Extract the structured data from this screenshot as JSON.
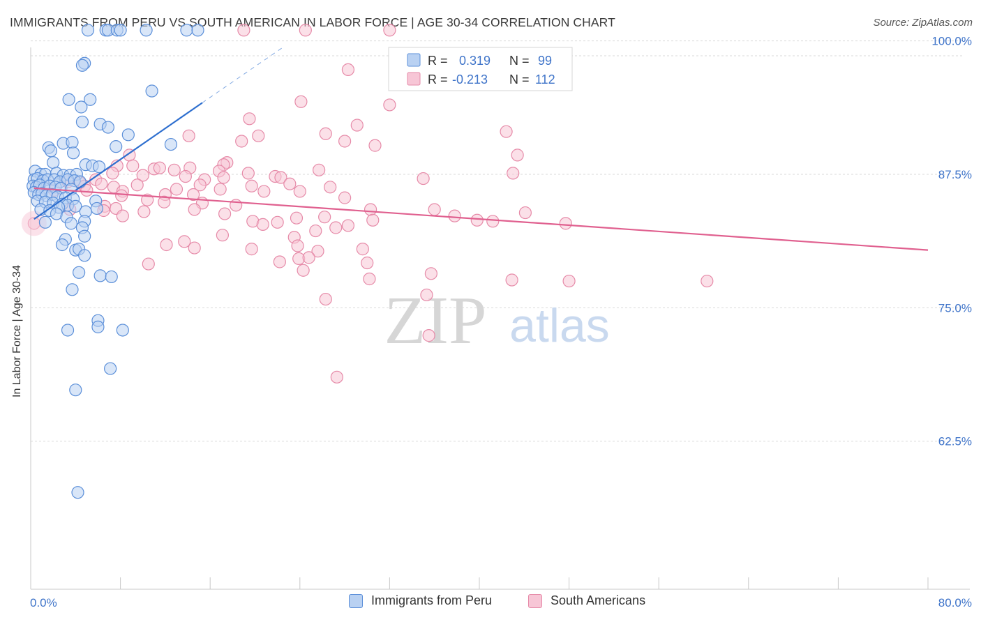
{
  "title": "IMMIGRANTS FROM PERU VS SOUTH AMERICAN IN LABOR FORCE | AGE 30-34 CORRELATION CHART",
  "source": "Source: ZipAtlas.com",
  "watermark": {
    "zip": "ZIP",
    "atlas": "atlas"
  },
  "colors": {
    "peru_fill": "#b9d1f2",
    "peru_stroke": "#5b8fd9",
    "peru_line": "#2e6fcf",
    "sa_fill": "#f7c6d6",
    "sa_stroke": "#e68aa8",
    "sa_line": "#e0608f",
    "tick_label": "#3f74c9",
    "grid": "#d9d9d9"
  },
  "stats_legend": [
    {
      "r_label": "R =",
      "r_value": "0.319",
      "n_label": "N =",
      "n_value": "99"
    },
    {
      "r_label": "R =",
      "r_value": "-0.213",
      "n_label": "N =",
      "n_value": "112"
    }
  ],
  "bottom_legend": [
    "Immigrants from Peru",
    "South Americans"
  ],
  "chart_data": {
    "type": "scatter",
    "title": "IMMIGRANTS FROM PERU VS SOUTH AMERICAN IN LABOR FORCE | AGE 30-34 CORRELATION CHART",
    "xlabel": "",
    "ylabel": "In Labor Force | Age 30-34",
    "xlim": [
      0,
      80
    ],
    "ylim": [
      51,
      101
    ],
    "x_tick_labels": [
      "0.0%",
      "80.0%"
    ],
    "y_ticks": [
      62.5,
      75.0,
      87.5,
      100.0
    ],
    "y_tick_labels": [
      "62.5%",
      "75.0%",
      "87.5%",
      "100.0%"
    ],
    "grid": true,
    "legend_position": "top-center",
    "series": [
      {
        "name": "Immigrants from Peru",
        "r": 0.319,
        "n": 99,
        "trend": {
          "x": [
            0.3,
            15.3
          ],
          "y": [
            83.3,
            94.2
          ],
          "dashed_to": [
            22.5,
            99.4
          ]
        },
        "points": [
          [
            5.1,
            101
          ],
          [
            6.7,
            101
          ],
          [
            6.9,
            101
          ],
          [
            7.7,
            101
          ],
          [
            8.0,
            101
          ],
          [
            10.3,
            101
          ],
          [
            13.9,
            101
          ],
          [
            14.9,
            101
          ],
          [
            4.8,
            97.9
          ],
          [
            4.6,
            97.7
          ],
          [
            10.8,
            95.3
          ],
          [
            5.3,
            94.5
          ],
          [
            3.4,
            94.5
          ],
          [
            4.5,
            93.8
          ],
          [
            6.2,
            92.2
          ],
          [
            6.9,
            91.9
          ],
          [
            4.6,
            92.4
          ],
          [
            8.7,
            91.2
          ],
          [
            2.9,
            90.4
          ],
          [
            3.7,
            90.5
          ],
          [
            7.6,
            90.1
          ],
          [
            12.5,
            90.3
          ],
          [
            1.6,
            90.0
          ],
          [
            1.8,
            89.7
          ],
          [
            3.8,
            89.5
          ],
          [
            2.0,
            88.6
          ],
          [
            4.9,
            88.4
          ],
          [
            5.5,
            88.3
          ],
          [
            6.1,
            88.2
          ],
          [
            0.4,
            87.8
          ],
          [
            0.9,
            87.5
          ],
          [
            1.3,
            87.5
          ],
          [
            2.3,
            87.6
          ],
          [
            2.9,
            87.4
          ],
          [
            3.5,
            87.4
          ],
          [
            4.1,
            87.5
          ],
          [
            0.3,
            87.0
          ],
          [
            0.6,
            87.1
          ],
          [
            1.1,
            86.9
          ],
          [
            1.5,
            87.0
          ],
          [
            2.1,
            87.0
          ],
          [
            2.6,
            86.8
          ],
          [
            3.3,
            87.0
          ],
          [
            3.9,
            86.9
          ],
          [
            4.4,
            86.8
          ],
          [
            0.2,
            86.4
          ],
          [
            0.5,
            86.3
          ],
          [
            0.8,
            86.5
          ],
          [
            1.2,
            86.2
          ],
          [
            1.7,
            86.4
          ],
          [
            2.2,
            86.3
          ],
          [
            2.7,
            86.2
          ],
          [
            3.6,
            86.1
          ],
          [
            0.3,
            85.8
          ],
          [
            0.7,
            85.6
          ],
          [
            1.0,
            85.7
          ],
          [
            1.4,
            85.5
          ],
          [
            1.9,
            85.6
          ],
          [
            2.4,
            85.4
          ],
          [
            3.1,
            85.3
          ],
          [
            3.8,
            85.2
          ],
          [
            0.6,
            85.0
          ],
          [
            1.3,
            84.9
          ],
          [
            2.0,
            84.8
          ],
          [
            2.8,
            84.7
          ],
          [
            3.3,
            84.6
          ],
          [
            4.0,
            84.5
          ],
          [
            5.8,
            85.0
          ],
          [
            2.5,
            84.4
          ],
          [
            0.9,
            84.2
          ],
          [
            1.7,
            84.1
          ],
          [
            5.9,
            84.3
          ],
          [
            4.9,
            84.0
          ],
          [
            2.3,
            83.8
          ],
          [
            3.2,
            83.5
          ],
          [
            4.8,
            83.1
          ],
          [
            1.3,
            83.0
          ],
          [
            3.6,
            82.9
          ],
          [
            4.6,
            82.5
          ],
          [
            4.8,
            81.7
          ],
          [
            3.1,
            81.4
          ],
          [
            2.8,
            80.9
          ],
          [
            4.0,
            80.4
          ],
          [
            4.3,
            80.5
          ],
          [
            4.8,
            79.9
          ],
          [
            4.3,
            78.3
          ],
          [
            6.2,
            78.0
          ],
          [
            7.2,
            77.9
          ],
          [
            3.7,
            76.7
          ],
          [
            6.0,
            73.8
          ],
          [
            6.0,
            73.2
          ],
          [
            3.3,
            72.9
          ],
          [
            8.2,
            72.9
          ],
          [
            7.1,
            69.3
          ],
          [
            4.0,
            67.3
          ],
          [
            4.2,
            57.7
          ]
        ]
      },
      {
        "name": "South Americans",
        "r": -0.213,
        "n": 112,
        "trend": {
          "x": [
            0.3,
            80.0
          ],
          "y": [
            86.2,
            80.4
          ]
        },
        "points": [
          [
            32.0,
            101
          ],
          [
            19.0,
            101
          ],
          [
            24.5,
            101
          ],
          [
            28.3,
            97.3
          ],
          [
            24.1,
            94.3
          ],
          [
            32.0,
            94.0
          ],
          [
            19.5,
            92.7
          ],
          [
            29.1,
            92.1
          ],
          [
            42.4,
            91.5
          ],
          [
            26.3,
            91.3
          ],
          [
            14.1,
            91.1
          ],
          [
            20.3,
            91.1
          ],
          [
            18.8,
            90.6
          ],
          [
            28.0,
            90.6
          ],
          [
            30.7,
            90.2
          ],
          [
            8.8,
            89.3
          ],
          [
            17.5,
            88.6
          ],
          [
            17.2,
            88.4
          ],
          [
            7.7,
            88.3
          ],
          [
            9.1,
            88.3
          ],
          [
            11.0,
            88.0
          ],
          [
            14.2,
            88.1
          ],
          [
            12.8,
            87.9
          ],
          [
            25.7,
            87.9
          ],
          [
            16.8,
            87.8
          ],
          [
            7.3,
            87.6
          ],
          [
            10.0,
            87.4
          ],
          [
            19.4,
            87.6
          ],
          [
            35.0,
            87.1
          ],
          [
            13.8,
            87.3
          ],
          [
            5.8,
            87.0
          ],
          [
            17.2,
            87.2
          ],
          [
            21.8,
            87.3
          ],
          [
            22.3,
            87.2
          ],
          [
            15.5,
            87.0
          ],
          [
            3.3,
            86.8
          ],
          [
            4.4,
            86.7
          ],
          [
            6.3,
            86.6
          ],
          [
            9.5,
            86.5
          ],
          [
            23.1,
            86.6
          ],
          [
            26.7,
            86.3
          ],
          [
            4.8,
            86.4
          ],
          [
            15.1,
            86.5
          ],
          [
            19.7,
            86.4
          ],
          [
            7.4,
            86.3
          ],
          [
            13.0,
            86.1
          ],
          [
            16.9,
            86.1
          ],
          [
            5.0,
            86.0
          ],
          [
            2.1,
            86.0
          ],
          [
            8.2,
            85.9
          ],
          [
            20.8,
            85.9
          ],
          [
            24.0,
            85.9
          ],
          [
            12.0,
            85.6
          ],
          [
            14.5,
            85.6
          ],
          [
            8.1,
            85.5
          ],
          [
            28.0,
            85.3
          ],
          [
            10.4,
            85.1
          ],
          [
            11.9,
            84.9
          ],
          [
            15.3,
            84.8
          ],
          [
            18.3,
            84.6
          ],
          [
            6.6,
            84.5
          ],
          [
            7.6,
            84.3
          ],
          [
            3.5,
            84.2
          ],
          [
            6.5,
            84.1
          ],
          [
            10.1,
            84.0
          ],
          [
            14.6,
            84.2
          ],
          [
            30.3,
            84.2
          ],
          [
            8.2,
            83.6
          ],
          [
            17.3,
            83.8
          ],
          [
            26.2,
            83.5
          ],
          [
            23.7,
            83.4
          ],
          [
            19.8,
            83.1
          ],
          [
            22.0,
            83.0
          ],
          [
            30.5,
            83.2
          ],
          [
            39.8,
            83.2
          ],
          [
            41.2,
            83.1
          ],
          [
            20.7,
            82.8
          ],
          [
            28.3,
            82.7
          ],
          [
            27.2,
            82.5
          ],
          [
            25.4,
            82.2
          ],
          [
            17.1,
            81.8
          ],
          [
            23.5,
            81.6
          ],
          [
            13.7,
            81.2
          ],
          [
            12.1,
            80.9
          ],
          [
            23.8,
            80.8
          ],
          [
            19.7,
            80.5
          ],
          [
            25.6,
            80.3
          ],
          [
            29.6,
            80.5
          ],
          [
            22.2,
            79.3
          ],
          [
            23.9,
            79.6
          ],
          [
            24.8,
            79.7
          ],
          [
            10.5,
            79.1
          ],
          [
            14.6,
            80.6
          ],
          [
            30.0,
            79.2
          ],
          [
            24.3,
            78.5
          ],
          [
            30.2,
            77.7
          ],
          [
            35.7,
            78.2
          ],
          [
            42.9,
            77.6
          ],
          [
            48.0,
            77.5
          ],
          [
            60.3,
            77.5
          ],
          [
            35.3,
            76.2
          ],
          [
            26.3,
            75.8
          ],
          [
            27.3,
            68.5
          ],
          [
            35.5,
            72.4
          ],
          [
            0.3,
            82.9
          ],
          [
            43.0,
            87.6
          ],
          [
            44.1,
            83.9
          ],
          [
            47.7,
            82.9
          ],
          [
            37.8,
            83.6
          ],
          [
            36.0,
            84.2
          ],
          [
            11.5,
            88.1
          ],
          [
            43.4,
            89.3
          ]
        ]
      }
    ]
  }
}
